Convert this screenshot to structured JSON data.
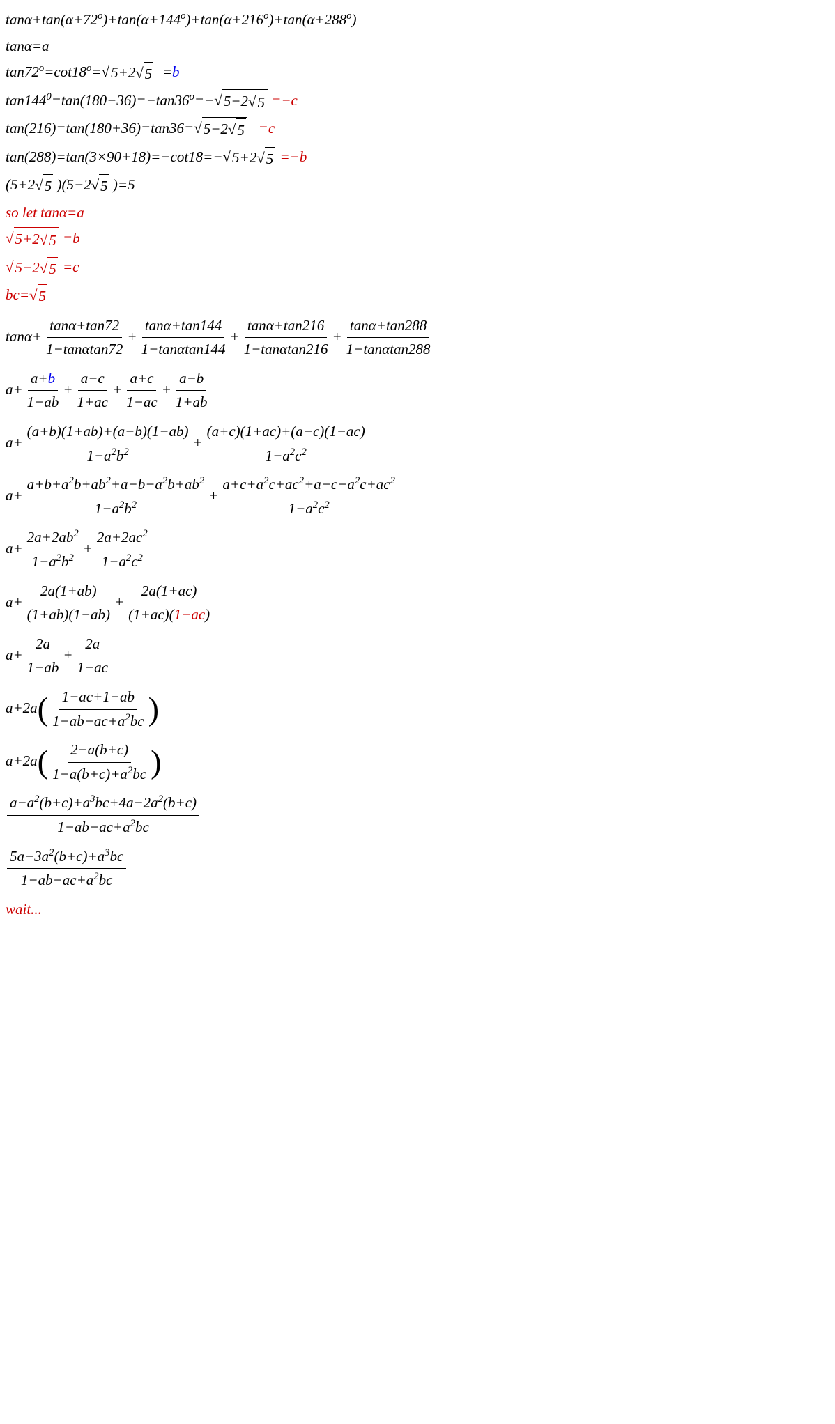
{
  "lines": [
    {
      "html": "tanα+tan(α+72<sup>o</sup>)+tan(α+144<sup>o</sup>)+tan(α+216<sup>o</sup>)+tan(α+288<sup>o</sup>)",
      "color": "black"
    },
    {
      "html": "tanα=a",
      "color": "black"
    },
    {
      "html": "tan72<sup>o</sup>=cot18<sup>o</sup>=<span class='sqrt-wrap'><span class='radical'>√</span><span class='sqrt-inner'>5+2<span class='sqrt-wrap'><span class='radical'>√</span><span class='sqrt-inner'>5</span></span> </span></span>&nbsp;&nbsp;=<span class='blue'>b</span>",
      "color": "black"
    },
    {
      "html": "tan144<sup>0</sup>=tan(180−36)=−tan36<sup>o</sup>=−<span class='sqrt-wrap'><span class='radical'>√</span><span class='sqrt-inner'>5−2<span class='sqrt-wrap'><span class='radical'>√</span><span class='sqrt-inner'>5</span></span></span></span> <span class='red'>=−c</span>",
      "color": "black"
    },
    {
      "html": "tan(216)=tan(180+36)=tan36=<span class='sqrt-wrap'><span class='radical'>√</span><span class='sqrt-inner'>5−2<span class='sqrt-wrap'><span class='radical'>√</span><span class='sqrt-inner'>5</span></span> </span></span>&nbsp;&nbsp;&nbsp;<span class='red'>=c</span>",
      "color": "black"
    },
    {
      "html": "tan(288)=tan(3×90+18)=−cot18=−<span class='sqrt-wrap'><span class='radical'>√</span><span class='sqrt-inner'>5+2<span class='sqrt-wrap'><span class='radical'>√</span><span class='sqrt-inner'>5</span></span></span></span> <span class='red'>=−b</span>",
      "color": "black"
    },
    {
      "html": "(5+2<span class='sqrt-wrap'><span class='radical'>√</span><span class='sqrt-inner'>5</span></span> )(5−2<span class='sqrt-wrap'><span class='radical'>√</span><span class='sqrt-inner'>5</span></span> )=5",
      "color": "black"
    },
    {
      "html": "so let tanα=a",
      "color": "red"
    },
    {
      "html": "<span class='sqrt-wrap'><span class='radical'>√</span><span class='sqrt-inner'>5+2<span class='sqrt-wrap'><span class='radical'>√</span><span class='sqrt-inner'>5</span></span> </span></span> =b",
      "color": "red"
    },
    {
      "html": "<span class='sqrt-wrap'><span class='radical'>√</span><span class='sqrt-inner'>5−2<span class='sqrt-wrap'><span class='radical'>√</span><span class='sqrt-inner'>5</span></span></span></span> =c",
      "color": "red"
    },
    {
      "html": "bc=<span class='sqrt-wrap'><span class='radical'>√</span><span class='sqrt-inner'>5</span></span>",
      "color": "red"
    },
    {
      "html": "tanα+<span class='frac'><span class='num'>tanα+tan72</span><span class='den'>1−tanαtan72</span></span>+<span class='frac'><span class='num'>tanα+tan144</span><span class='den'>1−tanαtan144</span></span>+<span class='frac'><span class='num'>tanα+tan216</span><span class='den'>1−tanαtan216</span></span>+<span class='frac'><span class='num'>tanα+tan288</span><span class='den'>1−tanαtan288</span></span>",
      "color": "black",
      "tall": true
    },
    {
      "html": "a+<span class='frac'><span class='num'>a+<span class='blue'>b</span></span><span class='den'>1−ab</span></span>+<span class='frac'><span class='num'>a−c</span><span class='den'>1+ac</span></span>+<span class='frac'><span class='num'>a+c</span><span class='den'>1−ac</span></span>+<span class='frac'><span class='num'>a−b</span><span class='den'>1+ab</span></span>",
      "color": "black",
      "tall": true
    },
    {
      "html": "a+<span class='frac'><span class='num'>(a+b)(1+ab)+(a−b)(1−ab)</span><span class='den'>1−a<sup>2</sup>b<sup>2</sup></span></span>+<span class='frac'><span class='num'>(a+c)(1+ac)+(a−c)(1−ac)</span><span class='den'>1−a<sup>2</sup>c<sup>2</sup></span></span>",
      "color": "black",
      "tall": true
    },
    {
      "html": "a+<span class='frac'><span class='num'>a+b+a<sup>2</sup>b+ab<sup>2</sup>+a−b−a<sup>2</sup>b+ab<sup>2</sup></span><span class='den'>1−a<sup>2</sup>b<sup>2</sup></span></span>+<span class='frac'><span class='num'>a+c+a<sup>2</sup>c+ac<sup>2</sup>+a−c−a<sup>2</sup>c+ac<sup>2</sup></span><span class='den'>1−a<sup>2</sup>c<sup>2</sup></span></span>",
      "color": "black",
      "tall": true
    },
    {
      "html": "a+<span class='frac'><span class='num'>2a+2ab<sup>2</sup></span><span class='den'>1−a<sup>2</sup>b<sup>2</sup></span></span>+<span class='frac'><span class='num'>2a+2ac<sup>2</sup></span><span class='den'>1−a<sup>2</sup>c<sup>2</sup></span></span>",
      "color": "black",
      "tall": true
    },
    {
      "html": "a+<span class='frac'><span class='num'>2a(1+ab)</span><span class='den'>(1+ab)(1−ab)</span></span>+<span class='frac'><span class='num'>2a(1+ac)</span><span class='den'>(1+ac)(<span class='red'>1−ac</span>)</span></span>",
      "color": "black",
      "tall": true
    },
    {
      "html": "a+<span class='frac'><span class='num'>2a</span><span class='den'>1−ab</span></span>+<span class='frac'><span class='num'>2a</span><span class='den'>1−ac</span></span>",
      "color": "black",
      "tall": true
    },
    {
      "html": "a+2a<span class='lparen'>(</span><span class='frac'><span class='num'>1−ac+1−ab</span><span class='den'>1−ab−ac+a<sup>2</sup>bc</span></span><span class='rparen'>)</span>",
      "color": "black",
      "tall": true
    },
    {
      "html": "a+2a<span class='lparen'>(</span><span class='frac'><span class='num'>2−a(b+c)</span><span class='den'>1−a(b+c)+a<sup>2</sup>bc</span></span><span class='rparen'>)</span>",
      "color": "black",
      "tall": true
    },
    {
      "html": "<span class='frac'><span class='num'>a−a<sup>2</sup>(b+c)+a<sup>3</sup>bc+4a−2a<sup>2</sup>(b+c)</span><span class='den'>1−ab−ac+a<sup>2</sup>bc</span></span>",
      "color": "black",
      "tall": true
    },
    {
      "html": "<span class='frac'><span class='num'>5a−3a<sup>2</sup>(b+c)+a<sup>3</sup>bc</span><span class='den'>1−ab−ac+a<sup>2</sup>bc</span></span>",
      "color": "black",
      "tall": true
    },
    {
      "html": "wait...",
      "color": "red"
    }
  ]
}
